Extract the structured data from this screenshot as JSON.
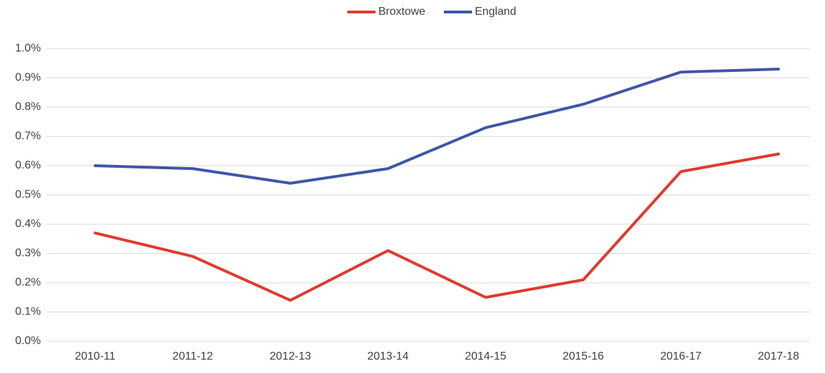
{
  "chart_data": {
    "type": "line",
    "categories": [
      "2010-11",
      "2011-12",
      "2012-13",
      "2013-14",
      "2014-15",
      "2015-16",
      "2016-17",
      "2017-18"
    ],
    "series": [
      {
        "name": "Broxtowe",
        "color": "#e03a2c",
        "values": [
          0.37,
          0.29,
          0.14,
          0.31,
          0.15,
          0.21,
          0.58,
          0.64
        ]
      },
      {
        "name": "England",
        "color": "#3f56a6",
        "values": [
          0.6,
          0.59,
          0.54,
          0.59,
          0.73,
          0.81,
          0.92,
          0.93
        ]
      }
    ],
    "ylim": [
      0,
      1.0
    ],
    "yticks": [
      {
        "value": 0,
        "label": "0.0%"
      },
      {
        "value": 0.1,
        "label": "0.1%"
      },
      {
        "value": 0.2,
        "label": "0.2%"
      },
      {
        "value": 0.3,
        "label": "0.3%"
      },
      {
        "value": 0.4,
        "label": "0.4%"
      },
      {
        "value": 0.5,
        "label": "0.5%"
      },
      {
        "value": 0.6,
        "label": "0.6%"
      },
      {
        "value": 0.7,
        "label": "0.7%"
      },
      {
        "value": 0.8,
        "label": "0.8%"
      },
      {
        "value": 0.9,
        "label": "0.9%"
      },
      {
        "value": 1.0,
        "label": "1.0%"
      }
    ],
    "grid": true,
    "legend": "top"
  }
}
